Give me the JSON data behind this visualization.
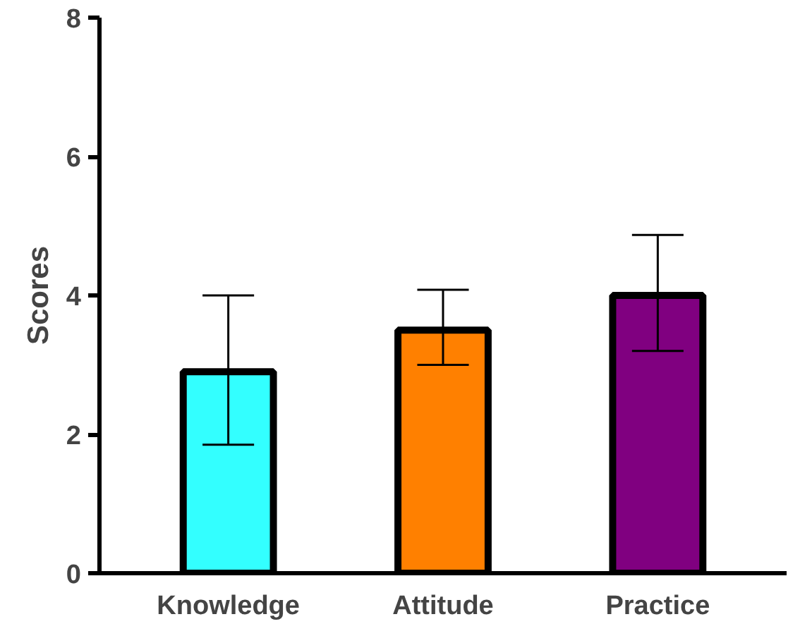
{
  "chart_data": {
    "type": "bar",
    "ylabel": "Scores",
    "categories": [
      "Knowledge",
      "Attitude",
      "Practice"
    ],
    "values": [
      2.9,
      3.5,
      4.0
    ],
    "colors": [
      "#33ffff",
      "#ff8000",
      "#800080"
    ],
    "errors": [
      [
        1.85,
        4.0
      ],
      [
        3.0,
        4.08
      ],
      [
        3.2,
        4.87
      ]
    ],
    "ylim": [
      0,
      8
    ],
    "yticks": [
      0,
      2,
      4,
      6,
      8
    ],
    "grid": false
  }
}
